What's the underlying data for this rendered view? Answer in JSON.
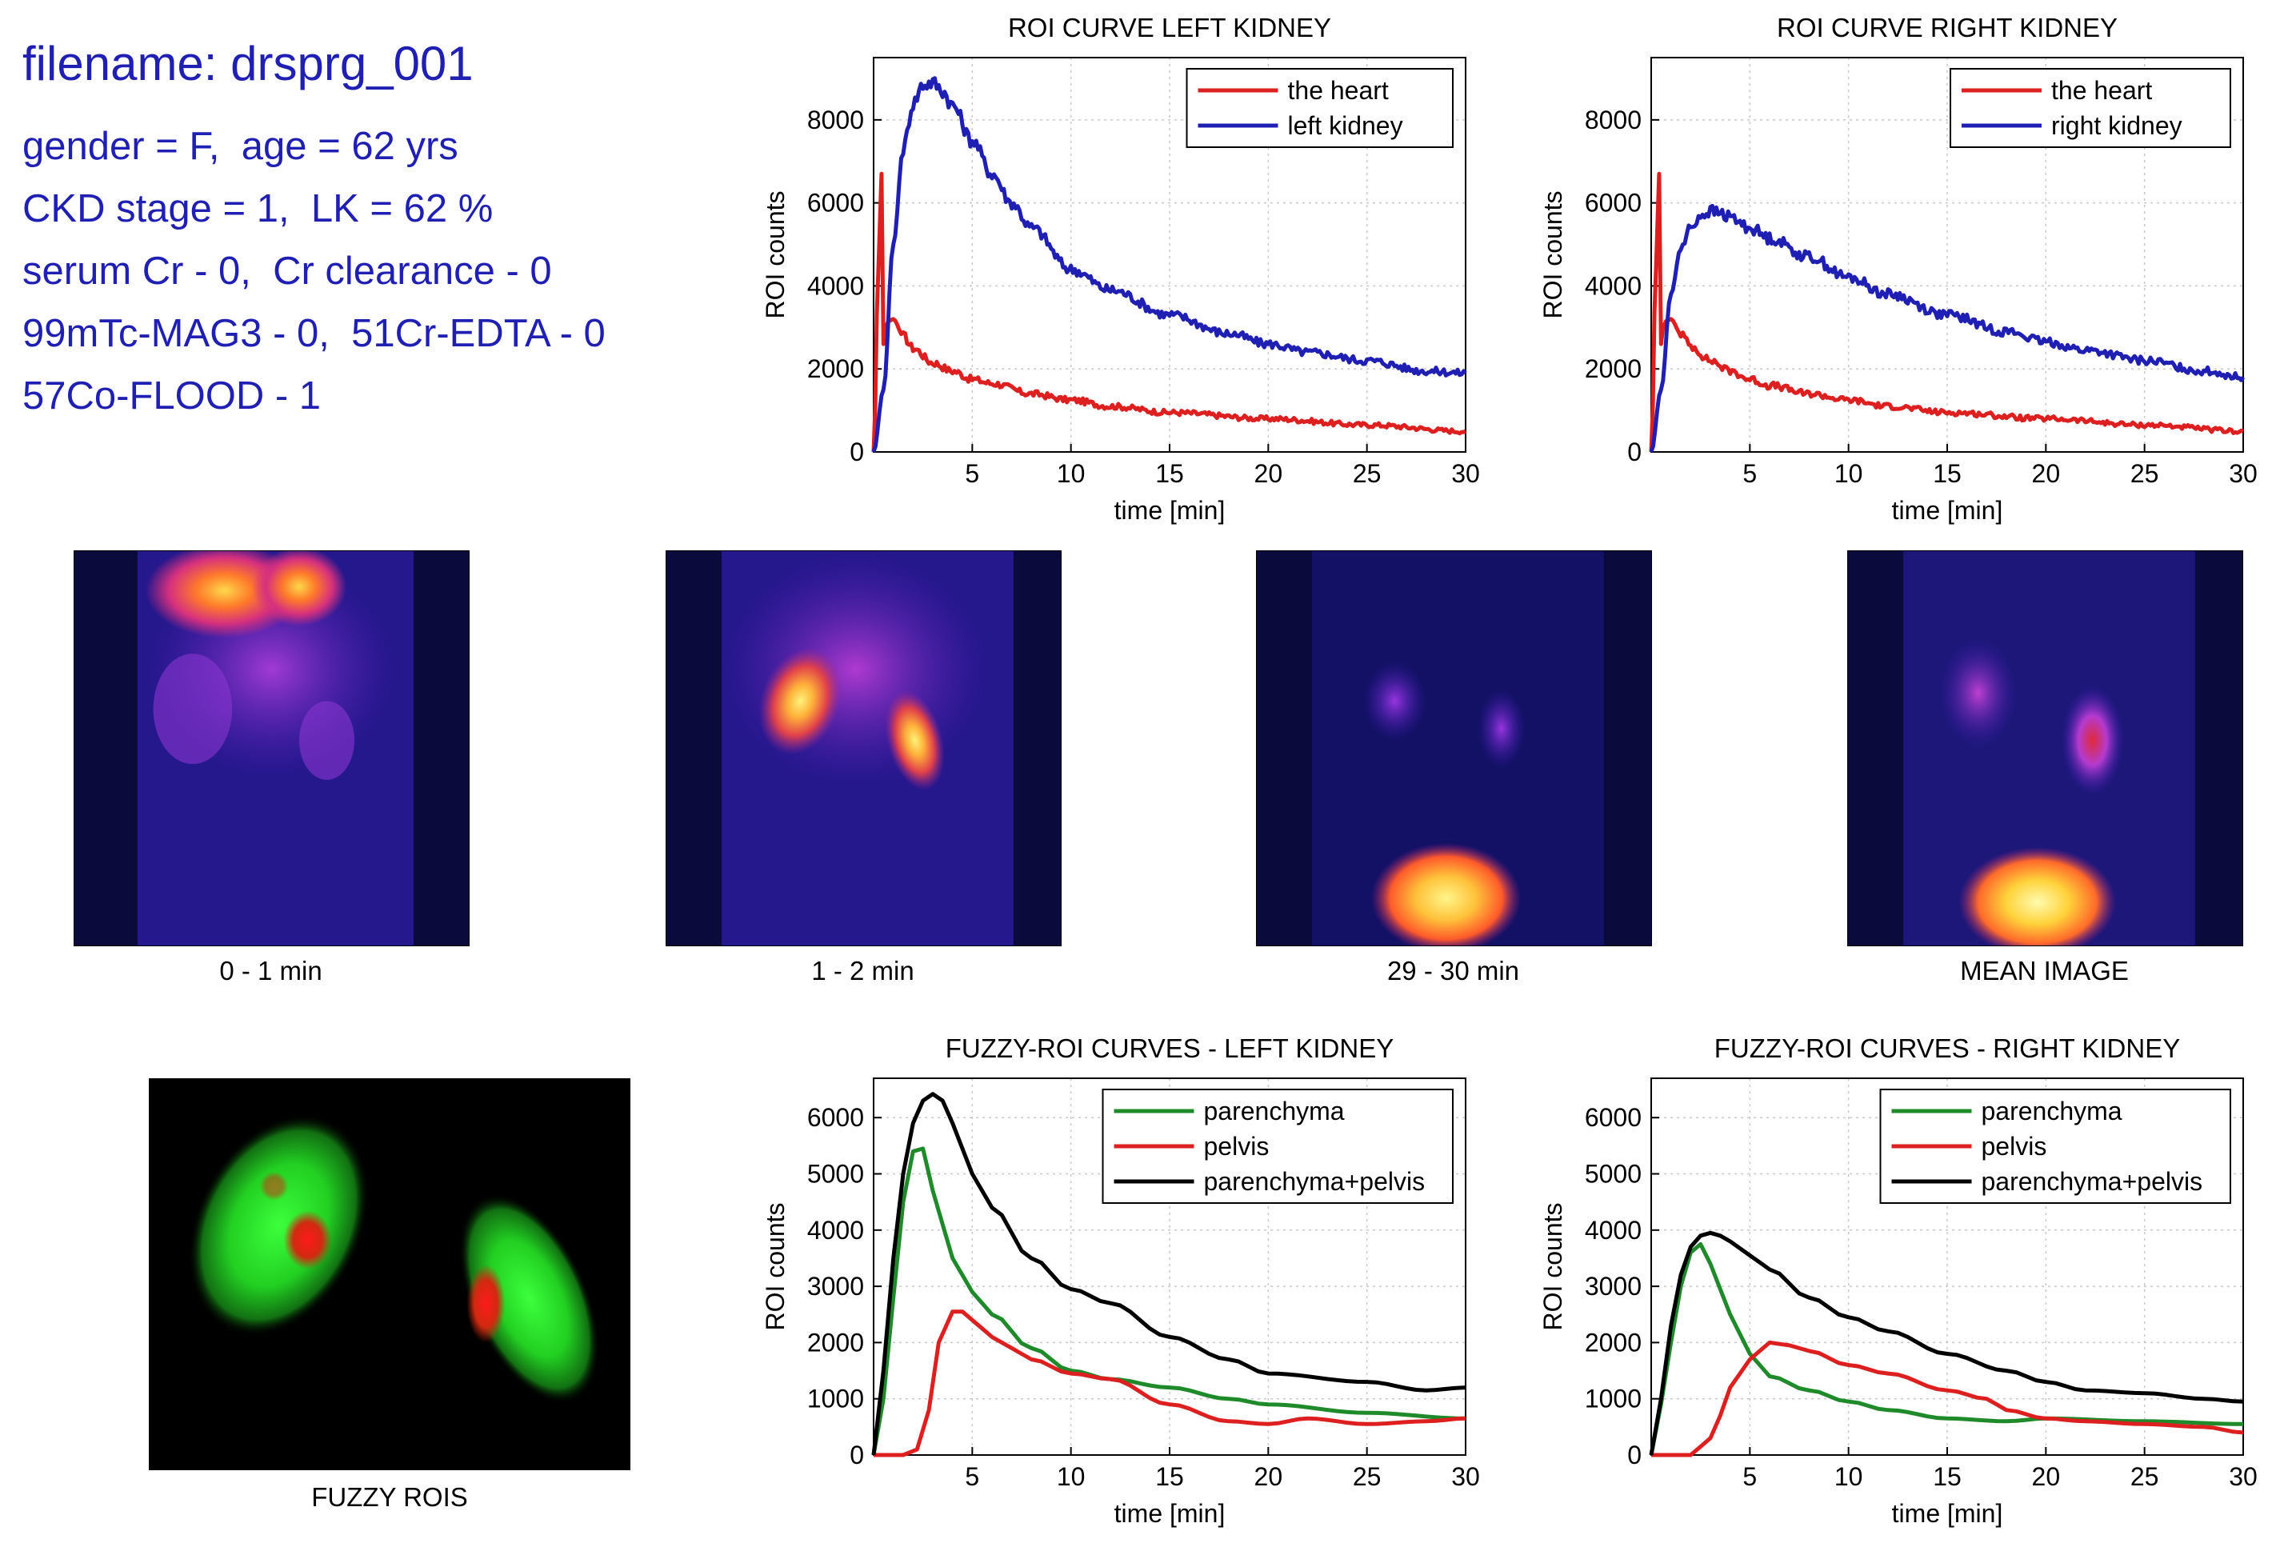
{
  "info": {
    "filename": "filename: drsprg_001",
    "lines": [
      "gender = F,  age = 62 yrs",
      "CKD stage = 1,  LK = 62 %",
      "serum Cr - 0,  Cr clearance - 0",
      "99mTc-MAG3 - 0,  51Cr-EDTA - 0",
      "57Co-FLOOD - 1"
    ]
  },
  "images": {
    "captions": [
      "0 - 1 min",
      "1 - 2 min",
      "29 - 30 min",
      "MEAN IMAGE"
    ],
    "fuzzy_caption": "FUZZY ROIS"
  },
  "colors": {
    "heart": "#dd1f1f",
    "kidney": "#1f1fb4",
    "parenchyma": "#1f8a2a",
    "pelvis": "#dd1f1f",
    "sum": "#000000",
    "info_text": "#1f1fb4"
  },
  "chart_data": [
    {
      "id": "roi-left",
      "type": "line",
      "title": "ROI CURVE LEFT KIDNEY",
      "xlabel": "time [min]",
      "ylabel": "ROI counts",
      "xlim": [
        0,
        30
      ],
      "ylim": [
        0,
        9500
      ],
      "xticks": [
        5,
        10,
        15,
        20,
        25,
        30
      ],
      "yticks": [
        0,
        2000,
        4000,
        6000,
        8000
      ],
      "grid": true,
      "legend": "top-right",
      "series": [
        {
          "name": "the heart",
          "color": "#dd1f1f",
          "x": [
            0,
            0.25,
            0.4,
            0.5,
            0.6,
            0.75,
            1.0,
            1.5,
            2,
            3,
            4,
            5,
            6,
            8,
            10,
            12,
            15,
            20,
            25,
            30
          ],
          "y": [
            0,
            4500,
            6700,
            2600,
            3000,
            3150,
            3200,
            2800,
            2500,
            2150,
            1950,
            1750,
            1650,
            1400,
            1250,
            1100,
            950,
            800,
            650,
            500
          ]
        },
        {
          "name": "left kidney",
          "color": "#1f1fb4",
          "x": [
            0,
            0.5,
            1.0,
            1.5,
            2,
            2.5,
            3,
            3.5,
            4,
            5,
            6,
            7,
            8,
            10,
            12,
            15,
            18,
            20,
            22,
            25,
            28,
            30
          ],
          "y": [
            0,
            1500,
            5000,
            7300,
            8400,
            8850,
            8900,
            8700,
            8350,
            7500,
            6700,
            6000,
            5400,
            4400,
            3900,
            3300,
            2850,
            2600,
            2400,
            2200,
            1950,
            1900
          ]
        }
      ]
    },
    {
      "id": "roi-right",
      "type": "line",
      "title": "ROI CURVE RIGHT KIDNEY",
      "xlabel": "time [min]",
      "ylabel": "ROI counts",
      "xlim": [
        0,
        30
      ],
      "ylim": [
        0,
        9500
      ],
      "xticks": [
        5,
        10,
        15,
        20,
        25,
        30
      ],
      "yticks": [
        0,
        2000,
        4000,
        6000,
        8000
      ],
      "grid": true,
      "legend": "top-right",
      "series": [
        {
          "name": "the heart",
          "color": "#dd1f1f",
          "x": [
            0,
            0.25,
            0.4,
            0.5,
            0.6,
            0.75,
            1.0,
            1.5,
            2,
            3,
            4,
            5,
            6,
            8,
            10,
            12,
            15,
            20,
            25,
            30
          ],
          "y": [
            0,
            4500,
            6700,
            2600,
            3000,
            3150,
            3200,
            2850,
            2550,
            2200,
            1950,
            1750,
            1600,
            1400,
            1250,
            1100,
            950,
            800,
            650,
            500
          ]
        },
        {
          "name": "right kidney",
          "color": "#1f1fb4",
          "x": [
            0,
            0.5,
            1.0,
            1.5,
            2,
            2.5,
            3,
            3.5,
            4,
            5,
            6,
            8,
            10,
            12,
            15,
            18,
            20,
            22,
            25,
            28,
            30
          ],
          "y": [
            0,
            1500,
            3800,
            4900,
            5400,
            5700,
            5800,
            5750,
            5650,
            5400,
            5150,
            4700,
            4200,
            3800,
            3300,
            2900,
            2650,
            2450,
            2200,
            1950,
            1800
          ]
        }
      ]
    },
    {
      "id": "fuzzy-left",
      "type": "line",
      "title": "FUZZY-ROI CURVES - LEFT KIDNEY",
      "xlabel": "time [min]",
      "ylabel": "ROI counts",
      "xlim": [
        0,
        30
      ],
      "ylim": [
        0,
        6700
      ],
      "xticks": [
        5,
        10,
        15,
        20,
        25,
        30
      ],
      "yticks": [
        0,
        1000,
        2000,
        3000,
        4000,
        5000,
        6000
      ],
      "grid": true,
      "legend": "top-right",
      "series": [
        {
          "name": "parenchyma",
          "color": "#1f8a2a",
          "x": [
            0,
            0.5,
            1.0,
            1.5,
            2.0,
            2.5,
            3.0,
            4,
            5,
            6,
            8,
            10,
            12,
            15,
            18,
            20,
            25,
            30
          ],
          "y": [
            0,
            1000,
            2800,
            4500,
            5400,
            5450,
            4700,
            3500,
            2900,
            2500,
            1900,
            1500,
            1350,
            1200,
            1000,
            900,
            750,
            650
          ]
        },
        {
          "name": "pelvis",
          "color": "#dd1f1f",
          "x": [
            0,
            1.5,
            2.2,
            2.8,
            3.3,
            4.0,
            4.5,
            5,
            6,
            7,
            8,
            10,
            12,
            15,
            18,
            20,
            22,
            25,
            28,
            30
          ],
          "y": [
            0,
            0,
            100,
            800,
            2000,
            2550,
            2550,
            2400,
            2100,
            1900,
            1700,
            1450,
            1350,
            900,
            600,
            550,
            650,
            550,
            600,
            650
          ]
        },
        {
          "name": "parenchyma+pelvis",
          "color": "#000000",
          "x": [
            0,
            0.5,
            1.0,
            1.5,
            2.0,
            2.5,
            3.0,
            3.5,
            4,
            5,
            6,
            8,
            10,
            12,
            15,
            18,
            20,
            25,
            28,
            30
          ],
          "y": [
            0,
            1500,
            3500,
            5000,
            5900,
            6300,
            6420,
            6300,
            5900,
            5000,
            4400,
            3500,
            2950,
            2700,
            2100,
            1700,
            1450,
            1300,
            1150,
            1200
          ]
        }
      ]
    },
    {
      "id": "fuzzy-right",
      "type": "line",
      "title": "FUZZY-ROI CURVES - RIGHT KIDNEY",
      "xlabel": "time [min]",
      "ylabel": "ROI counts",
      "xlim": [
        0,
        30
      ],
      "ylim": [
        0,
        6700
      ],
      "xticks": [
        5,
        10,
        15,
        20,
        25,
        30
      ],
      "yticks": [
        0,
        1000,
        2000,
        3000,
        4000,
        5000,
        6000
      ],
      "grid": true,
      "legend": "top-right",
      "series": [
        {
          "name": "parenchyma",
          "color": "#1f8a2a",
          "x": [
            0,
            0.5,
            1.0,
            1.5,
            2.0,
            2.5,
            3.0,
            4,
            5,
            6,
            8,
            10,
            12,
            15,
            18,
            20,
            25,
            30
          ],
          "y": [
            0,
            900,
            2000,
            3000,
            3600,
            3750,
            3400,
            2500,
            1800,
            1400,
            1150,
            950,
            800,
            650,
            600,
            650,
            600,
            550
          ]
        },
        {
          "name": "pelvis",
          "color": "#dd1f1f",
          "x": [
            0,
            2.0,
            3.0,
            3.5,
            4,
            5,
            6,
            7,
            8,
            10,
            12,
            15,
            17,
            18,
            20,
            22,
            25,
            28,
            30
          ],
          "y": [
            0,
            0,
            300,
            700,
            1200,
            1700,
            2000,
            1950,
            1850,
            1600,
            1450,
            1150,
            1000,
            800,
            650,
            600,
            550,
            500,
            400
          ]
        },
        {
          "name": "parenchyma+pelvis",
          "color": "#000000",
          "x": [
            0,
            0.5,
            1.0,
            1.5,
            2.0,
            2.5,
            3.0,
            3.5,
            4,
            5,
            6,
            8,
            10,
            12,
            15,
            18,
            20,
            22,
            25,
            28,
            30
          ],
          "y": [
            0,
            1000,
            2300,
            3200,
            3700,
            3900,
            3950,
            3900,
            3800,
            3550,
            3300,
            2800,
            2450,
            2200,
            1800,
            1500,
            1300,
            1150,
            1100,
            1000,
            950
          ]
        }
      ]
    }
  ]
}
